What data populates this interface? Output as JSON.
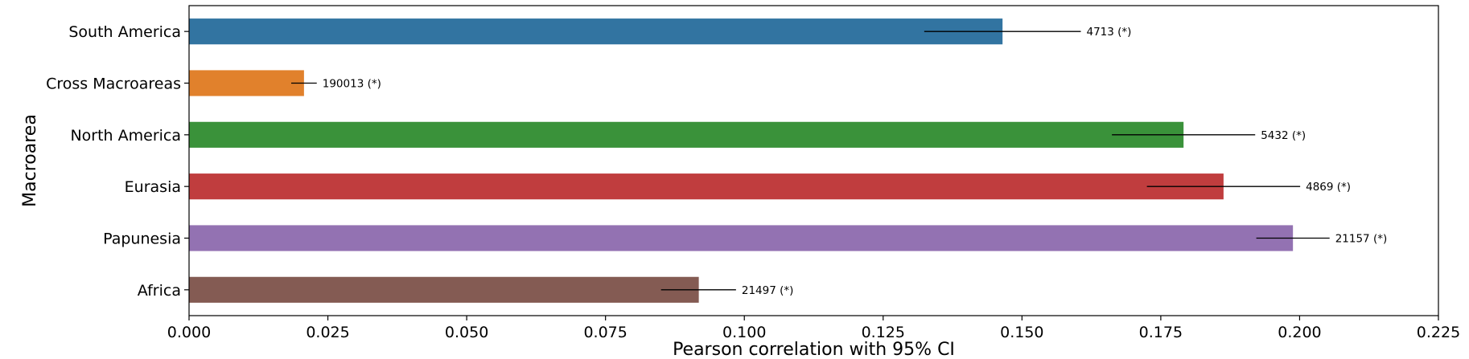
{
  "chart_data": {
    "type": "bar",
    "orientation": "horizontal",
    "title": "",
    "xlabel": "Pearson correlation with 95% CI",
    "ylabel": "Macroarea",
    "xlim": [
      0,
      0.225
    ],
    "xticks": [
      0.0,
      0.025,
      0.05,
      0.075,
      0.1,
      0.125,
      0.15,
      0.175,
      0.2,
      0.225
    ],
    "xtick_labels": [
      "0.000",
      "0.025",
      "0.050",
      "0.075",
      "0.100",
      "0.125",
      "0.150",
      "0.175",
      "0.200",
      "0.225"
    ],
    "grid": false,
    "legend": "none",
    "categories": [
      "South America",
      "Cross Macroareas",
      "North America",
      "Eurasia",
      "Papunesia",
      "Africa"
    ],
    "values": [
      0.1465,
      0.0207,
      0.1791,
      0.1863,
      0.1988,
      0.0918
    ],
    "ci": [
      [
        0.1324,
        0.1606
      ],
      [
        0.0184,
        0.023
      ],
      [
        0.1662,
        0.192
      ],
      [
        0.1725,
        0.2001
      ],
      [
        0.1922,
        0.2054
      ],
      [
        0.085,
        0.0985
      ]
    ],
    "annotations": [
      "4713 (*)",
      "190013 (*)",
      "5432 (*)",
      "4869 (*)",
      "21157 (*)",
      "21497 (*)"
    ],
    "colors": [
      "#3274a1",
      "#e1812c",
      "#3a923a",
      "#c03d3e",
      "#9372b2",
      "#845b53"
    ]
  }
}
